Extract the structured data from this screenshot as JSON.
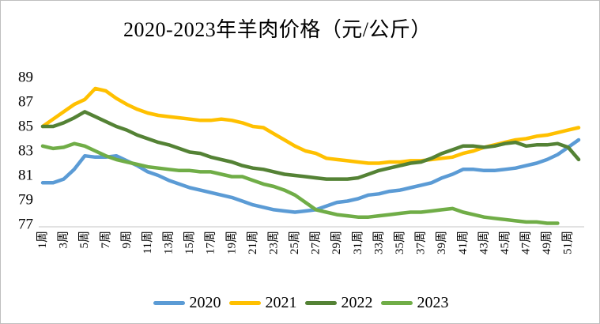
{
  "title": "2020-2023年羊肉价格（元/公斤）",
  "colors": {
    "series_2020": "#5B9BD5",
    "series_2021": "#FFC000",
    "series_2022": "#548235",
    "series_2023": "#70AD47",
    "axis_line": "#D9D9D9",
    "text": "#000000",
    "border": "#BFBFBF",
    "background": "#FFFFFF"
  },
  "legend": {
    "items": [
      "2020",
      "2021",
      "2022",
      "2023"
    ]
  },
  "chart_data": {
    "type": "line",
    "title": "2020-2023年羊肉价格（元/公斤）",
    "xlabel": "",
    "ylabel": "",
    "x_unit": "周",
    "x_weeks": 52,
    "x_tick_labels": [
      "1周",
      "3周",
      "5周",
      "7周",
      "9周",
      "11周",
      "13周",
      "15周",
      "17周",
      "19周",
      "21周",
      "23周",
      "25周",
      "27周",
      "29周",
      "31周",
      "33周",
      "35周",
      "37周",
      "39周",
      "41周",
      "43周",
      "45周",
      "47周",
      "49周",
      "51周"
    ],
    "ylim": [
      77,
      89
    ],
    "y_ticks": [
      77,
      79,
      81,
      83,
      85,
      87,
      89
    ],
    "grid": false,
    "legend_position": "bottom",
    "series": [
      {
        "name": "2020",
        "color": "#5B9BD5",
        "values": [
          80.4,
          80.4,
          80.7,
          81.5,
          82.6,
          82.5,
          82.5,
          82.6,
          82.2,
          81.8,
          81.3,
          81.0,
          80.6,
          80.3,
          80.0,
          79.8,
          79.6,
          79.4,
          79.2,
          78.9,
          78.6,
          78.4,
          78.2,
          78.1,
          78.0,
          78.1,
          78.2,
          78.5,
          78.8,
          78.9,
          79.1,
          79.4,
          79.5,
          79.7,
          79.8,
          80.0,
          80.2,
          80.4,
          80.8,
          81.1,
          81.5,
          81.5,
          81.4,
          81.4,
          81.5,
          81.6,
          81.8,
          82.0,
          82.3,
          82.7,
          83.3,
          83.9
        ]
      },
      {
        "name": "2021",
        "color": "#FFC000",
        "values": [
          85.0,
          85.6,
          86.2,
          86.8,
          87.2,
          88.1,
          87.9,
          87.3,
          86.8,
          86.4,
          86.1,
          85.9,
          85.8,
          85.7,
          85.6,
          85.5,
          85.5,
          85.6,
          85.5,
          85.3,
          85.0,
          84.9,
          84.4,
          83.9,
          83.4,
          83.0,
          82.8,
          82.4,
          82.3,
          82.2,
          82.1,
          82.0,
          82.0,
          82.1,
          82.1,
          82.2,
          82.2,
          82.3,
          82.4,
          82.5,
          82.8,
          83.0,
          83.3,
          83.5,
          83.7,
          83.9,
          84.0,
          84.2,
          84.3,
          84.5,
          84.7,
          84.9
        ]
      },
      {
        "name": "2022",
        "color": "#548235",
        "values": [
          85.0,
          85.0,
          85.3,
          85.7,
          86.2,
          85.8,
          85.4,
          85.0,
          84.7,
          84.3,
          84.0,
          83.7,
          83.5,
          83.2,
          82.9,
          82.8,
          82.5,
          82.3,
          82.1,
          81.8,
          81.6,
          81.5,
          81.3,
          81.1,
          81.0,
          80.9,
          80.8,
          80.7,
          80.7,
          80.7,
          80.8,
          81.1,
          81.4,
          81.6,
          81.8,
          82.0,
          82.1,
          82.4,
          82.8,
          83.1,
          83.4,
          83.4,
          83.3,
          83.4,
          83.6,
          83.7,
          83.4,
          83.5,
          83.5,
          83.6,
          83.3,
          82.3
        ]
      },
      {
        "name": "2023",
        "color": "#70AD47",
        "values": [
          83.4,
          83.2,
          83.3,
          83.6,
          83.4,
          83.0,
          82.6,
          82.3,
          82.1,
          81.9,
          81.7,
          81.6,
          81.5,
          81.4,
          81.4,
          81.3,
          81.3,
          81.1,
          80.9,
          80.9,
          80.6,
          80.3,
          80.1,
          79.8,
          79.4,
          78.8,
          78.2,
          78.0,
          77.8,
          77.7,
          77.6,
          77.6,
          77.7,
          77.8,
          77.9,
          78.0,
          78.0,
          78.1,
          78.2,
          78.3,
          78.0,
          77.8,
          77.6,
          77.5,
          77.4,
          77.3,
          77.2,
          77.2,
          77.1,
          77.1
        ]
      }
    ]
  }
}
